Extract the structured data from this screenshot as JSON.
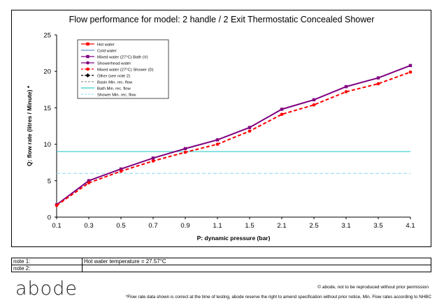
{
  "chart_data": {
    "type": "line",
    "title": "Flow performance for model: 2 handle / 2 Exit Thermostatic Concealed Shower",
    "xlabel": "P: dynamic pressure (bar)",
    "ylabel": "Q: flow rate (litres / Minute) *",
    "x_categories": [
      "0.1",
      "0.3",
      "0.5",
      "0.7",
      "0.9",
      "1.1",
      "1.5",
      "2.1",
      "2.5",
      "3.1",
      "3.5",
      "4.1"
    ],
    "ylim": [
      0,
      25
    ],
    "yticks": [
      "0",
      "5",
      "10",
      "15",
      "20",
      "25"
    ],
    "grid": false,
    "legend_placement": "top-left",
    "series": [
      {
        "name": "Hot water",
        "color": "#ff0000",
        "style": "solid",
        "marker": "square",
        "values": []
      },
      {
        "name": "Cold water",
        "color": "#6b8fd6",
        "style": "solid",
        "marker": "none",
        "values": []
      },
      {
        "name": "Mixed water (27°C) Bath (V)",
        "color": "#800080",
        "style": "solid",
        "marker": "square",
        "values": [
          1.7,
          5.0,
          6.6,
          8.1,
          9.4,
          10.6,
          12.3,
          14.8,
          16.1,
          17.9,
          19.1,
          20.8
        ]
      },
      {
        "name": "Showerhead water",
        "color": "#800080",
        "style": "solid",
        "marker": "circle",
        "values": []
      },
      {
        "name": "Mixed water (27°C) Shower (D)",
        "color": "#ff0000",
        "style": "dashed",
        "marker": "circle",
        "values": [
          1.6,
          4.7,
          6.3,
          7.7,
          8.9,
          10.0,
          11.8,
          14.1,
          15.4,
          17.2,
          18.3,
          19.9
        ]
      },
      {
        "name": "Other (see note 2)",
        "color": "#000000",
        "style": "dashed",
        "marker": "diamond",
        "values": []
      },
      {
        "name": "Basin Min. rec. flow",
        "color": "#999999",
        "style": "dashed",
        "marker": "none",
        "values": []
      },
      {
        "name": "Bath Min. rec. flow",
        "color": "#33cccc",
        "style": "solid",
        "marker": "none",
        "values": [
          9,
          9,
          9,
          9,
          9,
          9,
          9,
          9,
          9,
          9,
          9,
          9
        ]
      },
      {
        "name": "Shower Min. rec. flow",
        "color": "#a0e0f0",
        "style": "dashed",
        "marker": "none",
        "values": [
          6,
          6,
          6,
          6,
          6,
          6,
          6,
          6,
          6,
          6,
          6,
          6
        ]
      }
    ]
  },
  "notes": [
    {
      "label": "note 1:",
      "value": "Hot water temperature = 27.57°C"
    },
    {
      "label": "note 2:",
      "value": ""
    }
  ],
  "footer": {
    "logo": "abode",
    "copyright": "© abode, not to be reproduced without prior permission",
    "disclaimer": "*Flow rate data shown is correct at the time of testing, abode reserve the right to amend specification without prior notice, Min. Flow rates according to NHBC"
  }
}
